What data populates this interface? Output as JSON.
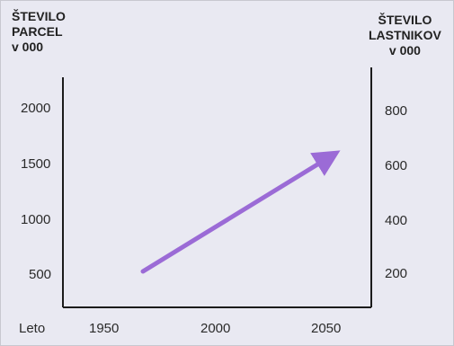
{
  "chart_data": {
    "type": "line",
    "title": "",
    "left_axis": {
      "label_lines": [
        "ŠTEVILO",
        "PARCEL",
        "v 000"
      ],
      "ticks": [
        2000,
        1500,
        1000,
        500
      ],
      "ylim": [
        300,
        2350
      ]
    },
    "right_axis": {
      "label_lines": [
        "ŠTEVILO",
        "LASTNIKOV",
        "v 000"
      ],
      "ticks": [
        800,
        600,
        400,
        200
      ],
      "ylim": [
        80,
        980
      ]
    },
    "x_axis": {
      "label": "Leto",
      "ticks": [
        1950,
        2000,
        2050
      ],
      "xlim": [
        1900,
        2085
      ]
    },
    "series": [
      {
        "style": "arrow",
        "x": [
          1948,
          2060
        ],
        "y": [
          620,
          1640
        ]
      }
    ],
    "grid": false,
    "legend": "none"
  },
  "colors": {
    "background": "#e9e9f2",
    "axis": "#1c1c1c",
    "text": "#222222",
    "arrow": "#9b6bd6"
  }
}
